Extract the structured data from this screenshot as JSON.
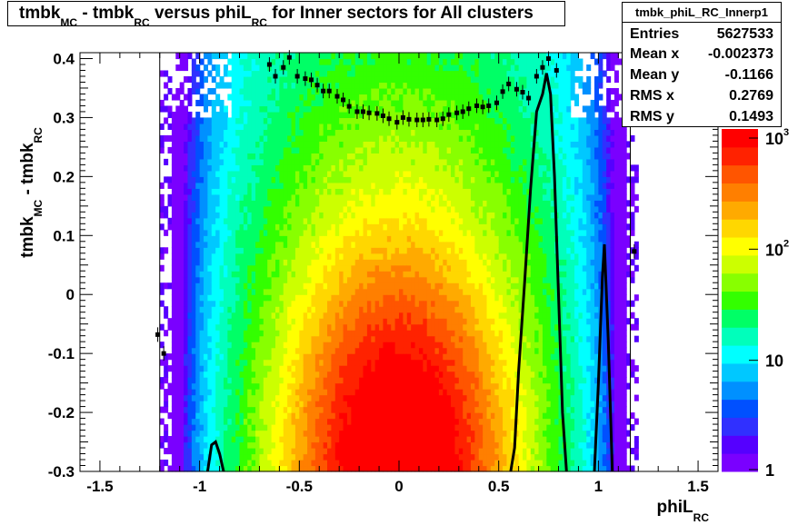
{
  "chart_data": {
    "type": "heatmap",
    "title": {
      "parts": [
        "tmbk",
        "MC",
        " - tmbk",
        "RC",
        " versus phiL",
        "RC",
        " for Inner sectors for All clusters"
      ]
    },
    "xlabel": {
      "main": "phiL",
      "sub": "RC"
    },
    "ylabel": {
      "main": "tmbk",
      "sub1": "MC",
      "mid": " - tmbk",
      "sub2": "RC"
    },
    "xlim": [
      -1.6,
      1.6
    ],
    "ylim": [
      -0.3,
      0.41
    ],
    "x_ticks": [
      "-1.5",
      "-1",
      "-0.5",
      "0",
      "0.5",
      "1",
      "1.5"
    ],
    "x_tick_values": [
      -1.5,
      -1,
      -0.5,
      0,
      0.5,
      1,
      1.5
    ],
    "y_ticks": [
      "-0.3",
      "-0.2",
      "-0.1",
      "0",
      "0.1",
      "0.2",
      "0.3",
      "0.4"
    ],
    "y_tick_values": [
      -0.3,
      -0.2,
      -0.1,
      0,
      0.1,
      0.2,
      0.3,
      0.4
    ],
    "color_scale": "log",
    "zlim": [
      1,
      1000
    ],
    "palette": [
      "#7a00ff",
      "#5500ff",
      "#3030ff",
      "#0050ff",
      "#0090ff",
      "#00c8ff",
      "#00ffff",
      "#00ffbb",
      "#00ff66",
      "#33ff00",
      "#88ff00",
      "#ccff00",
      "#ffff00",
      "#ffd700",
      "#ffaa00",
      "#ff7f00",
      "#ff5500",
      "#ff2200",
      "#ff0000"
    ],
    "z_ticks": [
      {
        "base": "1",
        "exp": "",
        "value": 1
      },
      {
        "base": "10",
        "exp": "",
        "value": 10
      },
      {
        "base": "10",
        "exp": "2",
        "value": 100
      },
      {
        "base": "10",
        "exp": "3",
        "value": 1000
      }
    ],
    "profile_points": [
      [
        -1.21,
        -0.068
      ],
      [
        -1.18,
        -0.1
      ],
      [
        -0.65,
        0.39
      ],
      [
        -0.62,
        0.37
      ],
      [
        -0.58,
        0.385
      ],
      [
        -0.55,
        0.402
      ],
      [
        -0.51,
        0.37
      ],
      [
        -0.47,
        0.366
      ],
      [
        -0.44,
        0.364
      ],
      [
        -0.41,
        0.355
      ],
      [
        -0.38,
        0.345
      ],
      [
        -0.35,
        0.345
      ],
      [
        -0.31,
        0.336
      ],
      [
        -0.28,
        0.33
      ],
      [
        -0.25,
        0.319
      ],
      [
        -0.21,
        0.31
      ],
      [
        -0.18,
        0.31
      ],
      [
        -0.15,
        0.308
      ],
      [
        -0.11,
        0.307
      ],
      [
        -0.08,
        0.303
      ],
      [
        -0.05,
        0.298
      ],
      [
        -0.01,
        0.292
      ],
      [
        0.02,
        0.3
      ],
      [
        0.05,
        0.297
      ],
      [
        0.09,
        0.296
      ],
      [
        0.12,
        0.296
      ],
      [
        0.15,
        0.297
      ],
      [
        0.19,
        0.296
      ],
      [
        0.22,
        0.298
      ],
      [
        0.25,
        0.305
      ],
      [
        0.29,
        0.308
      ],
      [
        0.32,
        0.31
      ],
      [
        0.35,
        0.315
      ],
      [
        0.39,
        0.32
      ],
      [
        0.42,
        0.318
      ],
      [
        0.45,
        0.32
      ],
      [
        0.49,
        0.325
      ],
      [
        0.52,
        0.344
      ],
      [
        0.55,
        0.357
      ],
      [
        0.59,
        0.348
      ],
      [
        0.62,
        0.343
      ],
      [
        0.65,
        0.333
      ],
      [
        0.69,
        0.37
      ],
      [
        0.72,
        0.385
      ],
      [
        0.75,
        0.4
      ],
      [
        0.79,
        0.38
      ],
      [
        1.18,
        0.073
      ]
    ],
    "curve": [
      [
        -0.96,
        -0.31
      ],
      [
        -0.94,
        -0.255
      ],
      [
        -0.92,
        -0.25
      ],
      [
        -0.9,
        -0.27
      ],
      [
        -0.88,
        -0.31
      ],
      [
        0.56,
        -0.31
      ],
      [
        0.58,
        -0.26
      ],
      [
        0.6,
        -0.13
      ],
      [
        0.63,
        0.02
      ],
      [
        0.66,
        0.18
      ],
      [
        0.69,
        0.31
      ],
      [
        0.72,
        0.34
      ],
      [
        0.74,
        0.375
      ],
      [
        0.76,
        0.34
      ],
      [
        0.78,
        0.2
      ],
      [
        0.8,
        0.0
      ],
      [
        0.82,
        -0.2
      ],
      [
        0.84,
        -0.31
      ],
      [
        0.98,
        -0.31
      ],
      [
        1.0,
        -0.15
      ],
      [
        1.02,
        0.03
      ],
      [
        1.03,
        0.085
      ],
      [
        1.05,
        -0.08
      ],
      [
        1.07,
        -0.31
      ]
    ],
    "vertical_lines": [
      -1.2,
      1.16
    ]
  },
  "stats": {
    "name": "tmbk_phiL_RC_Innerp1",
    "rows": [
      {
        "key": "Entries",
        "value": "5627533"
      },
      {
        "key": "Mean x",
        "value": "-0.002373"
      },
      {
        "key": "Mean y",
        "value": "-0.1166"
      },
      {
        "key": "RMS x",
        "value": "0.2769"
      },
      {
        "key": "RMS y",
        "value": "0.1493"
      }
    ]
  }
}
